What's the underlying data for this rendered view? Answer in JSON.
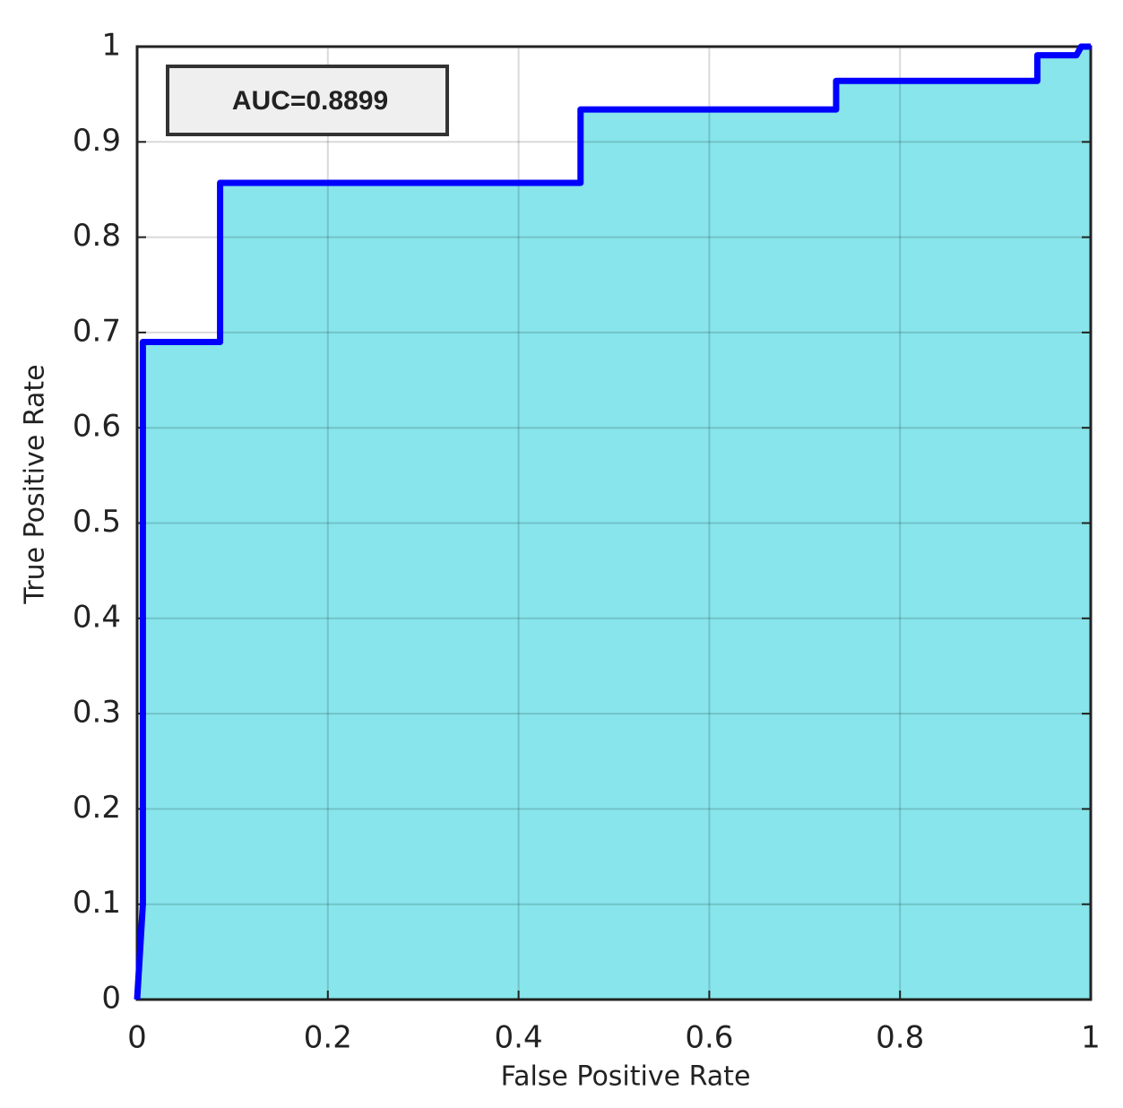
{
  "chart_data": {
    "type": "area_line",
    "x_label": "False Positive Rate",
    "y_label": "True Positive Rate",
    "annotation": "AUC=0.8899",
    "x": [
      0,
      0.006,
      0.006,
      0.087,
      0.087,
      0.465,
      0.465,
      0.733,
      0.733,
      0.944,
      0.944,
      0.985,
      0.99,
      1
    ],
    "series": [
      {
        "color": "#0000ff",
        "fill": "#87e5eb",
        "values": [
          0,
          0.1,
          0.69,
          0.69,
          0.857,
          0.857,
          0.934,
          0.934,
          0.964,
          0.964,
          0.991,
          0.991,
          1,
          1
        ]
      }
    ],
    "xlim": [
      0,
      1
    ],
    "ylim": [
      0,
      1
    ],
    "xticks": [
      0,
      0.2,
      0.4,
      0.6,
      0.8,
      1
    ],
    "yticks": [
      0,
      0.1,
      0.2,
      0.3,
      0.4,
      0.5,
      0.6,
      0.7,
      0.8,
      0.9,
      1
    ],
    "grid": true
  }
}
